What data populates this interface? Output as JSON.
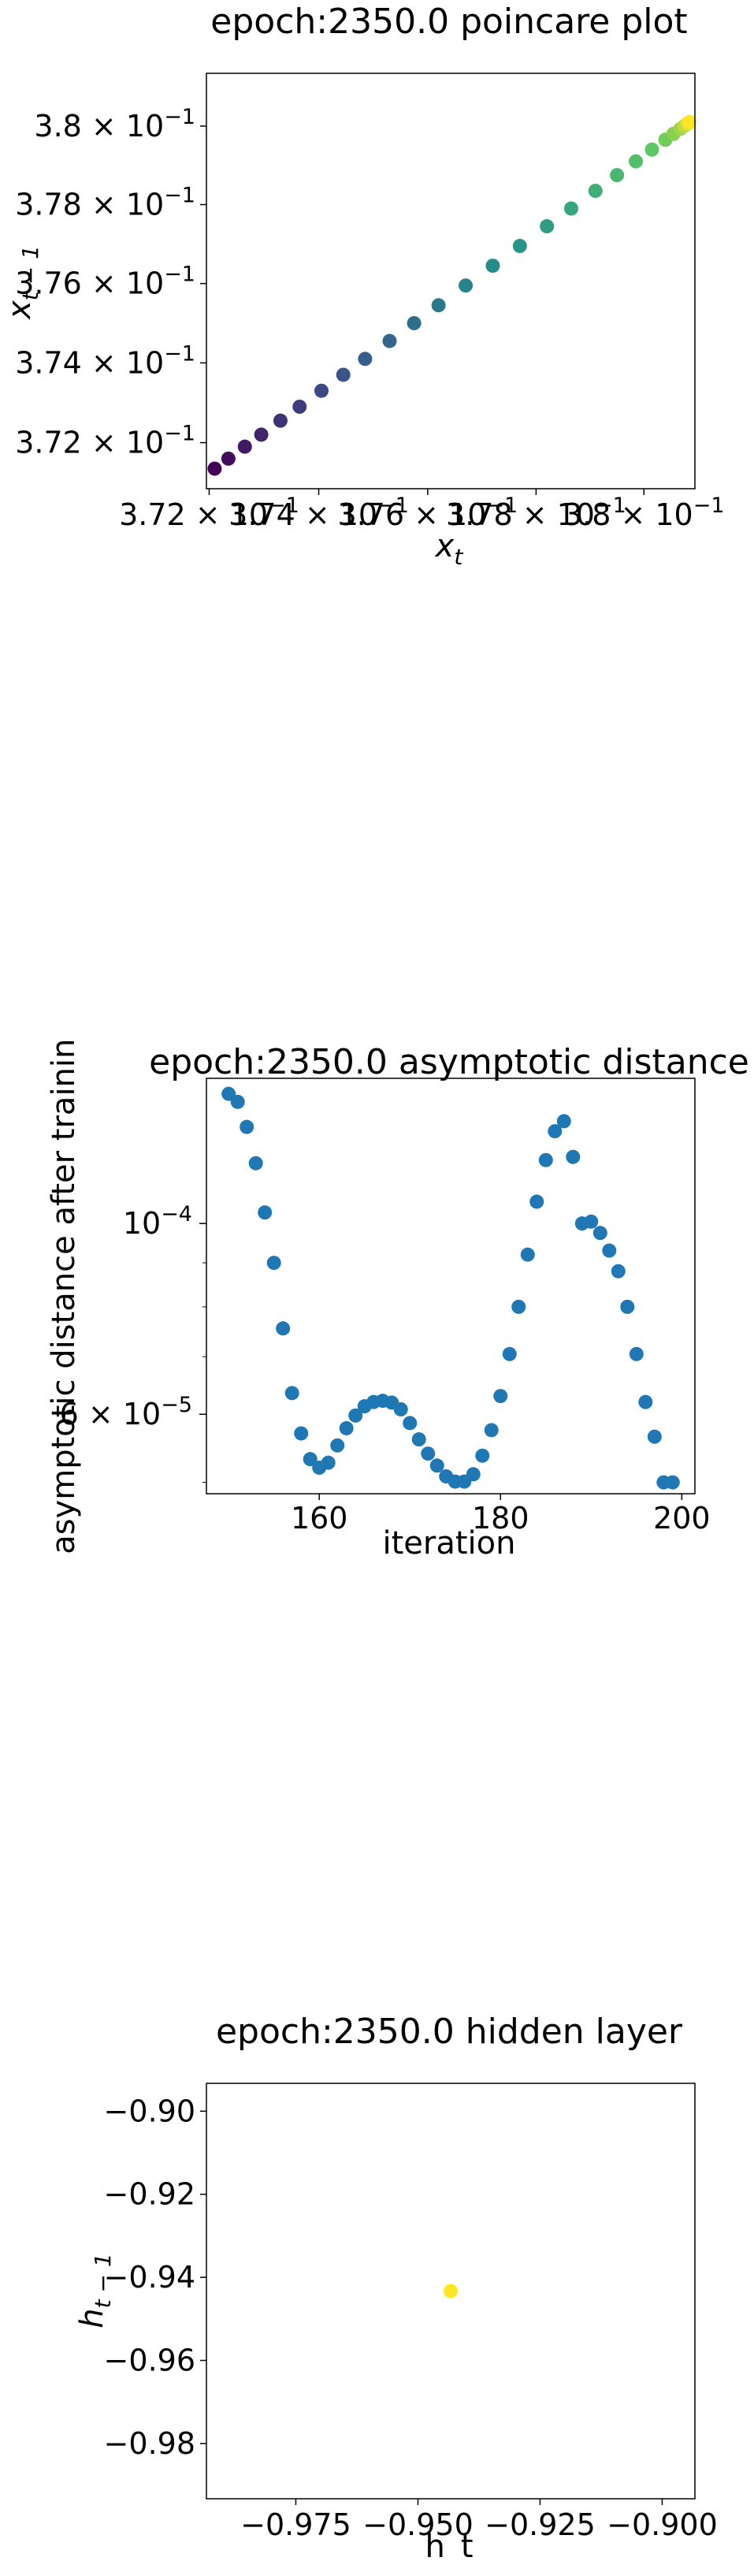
{
  "chart_data": [
    {
      "type": "scatter",
      "title": "epoch:2350.0 poincare plot",
      "xlabel_base": "x",
      "xlabel_sub": "t",
      "ylabel_base": "x",
      "ylabel_sub": "t − 1",
      "scale": "log",
      "colormap": "viridis",
      "xlim": [
        0.37195,
        0.38095
      ],
      "ylim": [
        0.37085,
        0.38135
      ],
      "x_ticks": [
        {
          "v": 0.372,
          "m": "3.72",
          "e": "−1"
        },
        {
          "v": 0.374,
          "m": "3.74",
          "e": "−1"
        },
        {
          "v": 0.376,
          "m": "3.76",
          "e": "−1"
        },
        {
          "v": 0.378,
          "m": "3.78",
          "e": "−1"
        },
        {
          "v": 0.38,
          "m": "3.8",
          "e": "−1"
        }
      ],
      "y_ticks": [
        {
          "v": 0.372,
          "m": "3.72",
          "e": "−1"
        },
        {
          "v": 0.374,
          "m": "3.74",
          "e": "−1"
        },
        {
          "v": 0.376,
          "m": "3.76",
          "e": "−1"
        },
        {
          "v": 0.378,
          "m": "3.78",
          "e": "−1"
        },
        {
          "v": 0.38,
          "m": "3.8",
          "e": "−1"
        }
      ],
      "x": [
        0.3721,
        0.37235,
        0.37265,
        0.37295,
        0.3733,
        0.37365,
        0.37405,
        0.37445,
        0.37485,
        0.3753,
        0.37575,
        0.3762,
        0.3767,
        0.3772,
        0.3777,
        0.3782,
        0.37865,
        0.3791,
        0.3795,
        0.37985,
        0.38015,
        0.3804,
        0.38055,
        0.38068,
        0.38075,
        0.3808,
        0.38083,
        0.38085
      ],
      "y": [
        0.37135,
        0.3716,
        0.3719,
        0.3722,
        0.37255,
        0.3729,
        0.3733,
        0.3737,
        0.3741,
        0.37455,
        0.375,
        0.37545,
        0.37595,
        0.37645,
        0.37695,
        0.37745,
        0.3779,
        0.37835,
        0.37875,
        0.3791,
        0.3794,
        0.37965,
        0.3798,
        0.37993,
        0.38,
        0.38005,
        0.38008,
        0.3801
      ]
    },
    {
      "type": "scatter",
      "title": "epoch:2350.0 asymptotic distance",
      "xlabel": "iteration",
      "ylabel": "asymptotic distance after training",
      "yscale": "log",
      "color": "#1f77b4",
      "xlim": [
        147.55,
        201.45
      ],
      "ylim": [
        4.85e-05,
        0.0001475
      ],
      "x_ticks": [
        {
          "v": 160,
          "label": "160"
        },
        {
          "v": 180,
          "label": "180"
        },
        {
          "v": 200,
          "label": "200"
        }
      ],
      "y_ticks": [
        {
          "v": 0.0001,
          "m": "10",
          "e": "−4"
        },
        {
          "v": 6e-05,
          "m": "6 × 10",
          "e": "−5"
        }
      ],
      "y_minor_ticks": [
        5e-05,
        7e-05,
        8e-05,
        9e-05
      ],
      "x": [
        150,
        151,
        152,
        153,
        154,
        155,
        156,
        157,
        158,
        159,
        160,
        161,
        162,
        163,
        164,
        165,
        166,
        167,
        168,
        169,
        170,
        171,
        172,
        173,
        174,
        175,
        176,
        177,
        178,
        179,
        180,
        181,
        182,
        183,
        184,
        185,
        186,
        187,
        188,
        189,
        190,
        191,
        192,
        193,
        194,
        195,
        196,
        197,
        198,
        199
      ],
      "y": [
        0.0001415,
        0.0001385,
        0.0001295,
        0.0001175,
        0.000103,
        9e-05,
        7.55e-05,
        6.35e-05,
        5.7e-05,
        5.32e-05,
        5.2e-05,
        5.27e-05,
        5.52e-05,
        5.78e-05,
        5.98e-05,
        6.13e-05,
        6.2e-05,
        6.22e-05,
        6.19e-05,
        6.08e-05,
        5.86e-05,
        5.61e-05,
        5.4e-05,
        5.23e-05,
        5.08e-05,
        5.01e-05,
        5.01e-05,
        5.11e-05,
        5.37e-05,
        5.75e-05,
        6.3e-05,
        7.05e-05,
        8e-05,
        9.2e-05,
        0.000106,
        0.0001185,
        0.000128,
        0.0001315,
        0.0001195,
        0.0001,
        0.0001005,
        9.75e-05,
        9.3e-05,
        8.8e-05,
        8e-05,
        7.05e-05,
        6.2e-05,
        5.65e-05,
        5e-05,
        5e-05
      ]
    },
    {
      "type": "scatter",
      "title": "epoch:2350.0 hidden layer",
      "xlabel": "h_t",
      "ylabel_base": "h",
      "ylabel_sub": "t − 1",
      "xlim": [
        -0.9933,
        -0.8933
      ],
      "ylim": [
        -0.9933,
        -0.8933
      ],
      "x_ticks": [
        {
          "v": -0.975,
          "label": "−0.975"
        },
        {
          "v": -0.95,
          "label": "−0.950"
        },
        {
          "v": -0.925,
          "label": "−0.925"
        },
        {
          "v": -0.9,
          "label": "−0.900"
        }
      ],
      "y_ticks": [
        {
          "v": -0.9,
          "label": "−0.90"
        },
        {
          "v": -0.92,
          "label": "−0.92"
        },
        {
          "v": -0.94,
          "label": "−0.94"
        },
        {
          "v": -0.96,
          "label": "−0.96"
        },
        {
          "v": -0.98,
          "label": "−0.98"
        }
      ],
      "color": "#fde725",
      "x": [
        -0.9433
      ],
      "y": [
        -0.9433
      ]
    }
  ]
}
